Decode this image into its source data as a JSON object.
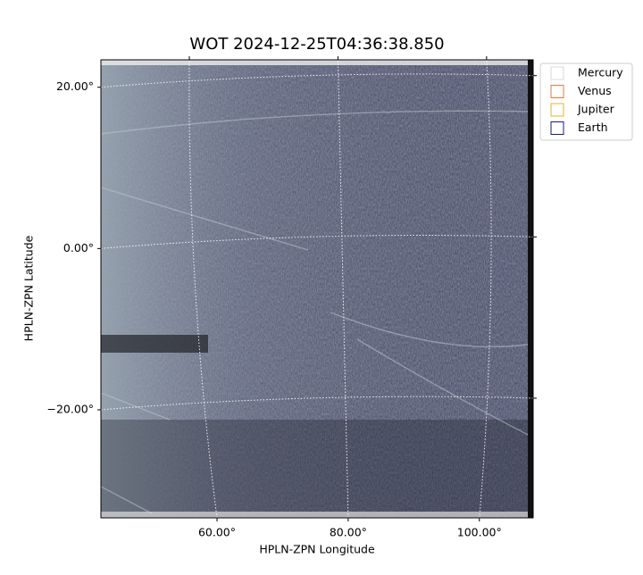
{
  "chart_data": {
    "type": "image",
    "title": "WOT 2024-12-25T04:36:38.850",
    "x_label": "HPLN-ZPN Longitude",
    "y_label": "HPLN-ZPN Latitude",
    "xlim": [
      42.3,
      108.2
    ],
    "ylim": [
      -33.4,
      23.4
    ],
    "xticks": [
      {
        "value": 60,
        "label": "60.00°"
      },
      {
        "value": 80,
        "label": "80.00°"
      },
      {
        "value": 100,
        "label": "100.00°"
      }
    ],
    "yticks": [
      {
        "value": -20,
        "label": "−20.00°"
      },
      {
        "value": 0,
        "label": "0.00°"
      },
      {
        "value": 20,
        "label": "20.00°"
      }
    ],
    "grid": true,
    "legend_position": "upper right",
    "series": [
      {
        "name": "Mercury",
        "color": "#d9d9d9"
      },
      {
        "name": "Venus",
        "color": "#e07b39"
      },
      {
        "name": "Jupiter",
        "color": "#e6b422"
      },
      {
        "name": "Earth",
        "color": "#1a1a80"
      }
    ]
  }
}
